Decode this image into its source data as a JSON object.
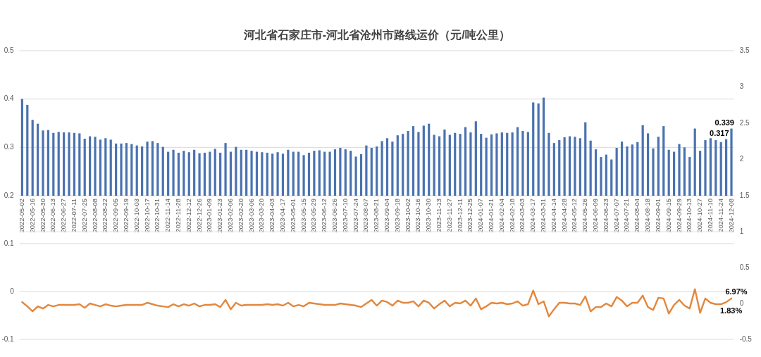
{
  "chart_data": [
    {
      "type": "bar",
      "title": "河北省石家庄市-河北省沧州市路线运价（元/吨公里）",
      "categories": [
        "2022-05-02",
        null,
        "2022-05-16",
        null,
        "2022-05-30",
        null,
        "2022-06-13",
        null,
        "2022-06-27",
        null,
        "2022-07-11",
        null,
        "2022-07-25",
        null,
        "2022-08-08",
        null,
        "2022-08-22",
        null,
        "2022-09-05",
        null,
        "2022-09-19",
        null,
        "2022-10-03",
        null,
        "2022-10-17",
        null,
        "2022-10-31",
        null,
        "2022-11-14",
        null,
        "2022-11-28",
        null,
        "2022-12-12",
        null,
        "2022-12-26",
        null,
        "2023-01-09",
        null,
        "2023-01-23",
        null,
        "2023-02-06",
        null,
        "2023-02-20",
        null,
        "2023-03-06",
        null,
        "2023-03-20",
        null,
        "2023-04-03",
        null,
        "2023-04-17",
        null,
        "2023-05-01",
        null,
        "2023-05-15",
        null,
        "2023-05-29",
        null,
        "2023-06-12",
        null,
        "2023-06-26",
        null,
        "2023-07-10",
        null,
        "2023-07-24",
        null,
        "2023-08-07",
        null,
        "2023-08-21",
        null,
        "2023-09-04",
        null,
        "2023-09-18",
        null,
        "2023-10-02",
        null,
        "2023-10-16",
        null,
        "2023-10-30",
        null,
        "2023-11-13",
        null,
        "2023-11-27",
        null,
        "2023-12-11",
        null,
        "2023-12-25",
        null,
        "2024-01-07",
        null,
        "2024-01-21",
        null,
        "2024-02-04",
        null,
        "2024-02-18",
        null,
        "2024-03-03",
        null,
        "2024-03-17",
        null,
        "2024-03-31",
        null,
        "2024-04-14",
        null,
        "2024-04-28",
        null,
        "2024-05-12",
        null,
        "2024-05-26",
        null,
        "2024-06-09",
        null,
        "2024-06-23",
        null,
        "2024-07-07",
        null,
        "2024-07-21",
        null,
        "2024-08-04",
        null,
        "2024-08-18",
        null,
        "2024-09-01",
        null,
        "2024-09-15",
        null,
        "2024-09-29",
        null,
        "2024-10-13",
        null,
        "2024-10-27",
        null,
        "2024-11-10",
        null,
        "2024-11-24",
        null,
        "2024-12-08"
      ],
      "series": [
        {
          "color": "#4a72b0",
          "values": [
            0.4,
            0.388,
            0.357,
            0.349,
            0.335,
            0.336,
            0.33,
            0.332,
            0.331,
            0.331,
            0.33,
            0.329,
            0.318,
            0.323,
            0.322,
            0.316,
            0.319,
            0.316,
            0.308,
            0.308,
            0.309,
            0.307,
            0.304,
            0.302,
            0.312,
            0.313,
            0.309,
            0.301,
            0.291,
            0.295,
            0.289,
            0.293,
            0.29,
            0.295,
            0.288,
            0.289,
            0.291,
            0.297,
            0.289,
            0.309,
            0.291,
            0.301,
            0.295,
            0.295,
            0.293,
            0.291,
            0.29,
            0.289,
            0.287,
            0.29,
            0.287,
            0.295,
            0.291,
            0.291,
            0.284,
            0.289,
            0.293,
            0.294,
            0.291,
            0.291,
            0.296,
            0.299,
            0.296,
            0.293,
            0.281,
            0.286,
            0.304,
            0.299,
            0.302,
            0.313,
            0.319,
            0.312,
            0.325,
            0.328,
            0.334,
            0.344,
            0.332,
            0.345,
            0.349,
            0.326,
            0.323,
            0.337,
            0.326,
            0.33,
            0.328,
            0.342,
            0.331,
            0.354,
            0.328,
            0.32,
            0.327,
            0.329,
            0.331,
            0.33,
            0.331,
            0.342,
            0.334,
            0.332,
            0.393,
            0.391,
            0.403,
            0.33,
            0.309,
            0.315,
            0.321,
            0.323,
            0.322,
            0.319,
            0.352,
            0.314,
            0.296,
            0.28,
            0.285,
            0.275,
            0.299,
            0.312,
            0.302,
            0.306,
            0.311,
            0.346,
            0.329,
            0.298,
            0.322,
            0.344,
            0.295,
            0.291,
            0.307,
            0.3,
            0.28,
            0.339,
            0.293,
            0.315,
            0.319,
            0.315,
            0.311,
            0.317,
            0.339
          ],
          "value_labels": [
            null,
            null,
            null,
            null,
            null,
            null,
            null,
            null,
            null,
            null,
            null,
            null,
            null,
            null,
            null,
            null,
            null,
            null,
            null,
            null,
            null,
            null,
            null,
            null,
            null,
            null,
            null,
            null,
            null,
            null,
            null,
            null,
            null,
            null,
            null,
            null,
            null,
            null,
            null,
            null,
            null,
            null,
            null,
            null,
            null,
            null,
            null,
            null,
            null,
            null,
            null,
            null,
            null,
            null,
            null,
            null,
            null,
            null,
            null,
            null,
            null,
            null,
            null,
            null,
            null,
            null,
            null,
            null,
            null,
            null,
            null,
            null,
            null,
            null,
            null,
            null,
            null,
            null,
            null,
            null,
            null,
            null,
            null,
            null,
            null,
            null,
            null,
            null,
            null,
            null,
            null,
            null,
            null,
            null,
            null,
            null,
            null,
            null,
            null,
            null,
            null,
            null,
            null,
            null,
            null,
            null,
            null,
            null,
            null,
            null,
            null,
            null,
            null,
            null,
            null,
            null,
            null,
            null,
            null,
            null,
            null,
            null,
            null,
            null,
            null,
            null,
            null,
            null,
            null,
            null,
            null,
            null,
            null,
            null,
            null,
            "0.317",
            "0.339"
          ]
        }
      ],
      "ylim": [
        0.2,
        0.5
      ],
      "yticks": [
        0.2,
        0.3,
        0.4,
        0.5
      ],
      "y2lim": [
        1.5,
        3.5
      ],
      "y2ticks": [
        1.5,
        2,
        2.5,
        3,
        3.5
      ],
      "grid": "y"
    },
    {
      "type": "line",
      "categories": [
        null,
        null,
        null,
        null,
        null,
        null,
        null,
        null,
        null,
        null,
        null,
        null,
        null,
        null,
        null,
        null,
        null,
        null,
        null,
        null,
        null,
        null,
        null,
        null,
        null,
        null,
        null,
        null,
        null,
        null,
        null,
        null,
        null,
        null,
        null,
        null,
        null,
        null,
        null,
        null,
        null,
        null,
        null,
        null,
        null,
        null,
        null,
        null,
        null,
        null,
        null,
        null,
        null,
        null,
        null,
        null,
        null,
        null,
        null,
        null,
        null,
        null,
        null,
        null,
        null,
        null,
        null,
        null,
        null,
        null,
        null,
        null,
        null,
        null,
        null,
        null,
        null,
        null,
        null,
        null,
        null,
        null,
        null,
        null,
        null,
        null,
        null,
        null,
        null,
        null,
        null,
        null,
        null,
        null,
        null,
        null,
        null,
        null,
        null,
        null,
        null,
        null,
        null,
        null,
        null,
        null,
        null,
        null,
        null,
        null,
        null,
        null,
        null,
        null,
        null,
        null,
        null,
        null,
        null,
        null,
        null,
        null,
        null,
        null,
        null,
        null,
        null,
        null,
        null,
        null,
        null,
        null,
        null,
        null,
        null,
        null,
        null
      ],
      "series": [
        {
          "color": "#e3873d",
          "axis": "y2",
          "values": [
            0.02,
            -0.04,
            -0.11,
            -0.04,
            -0.07,
            -0.02,
            -0.04,
            -0.02,
            -0.02,
            -0.02,
            -0.02,
            -0.01,
            -0.06,
            0,
            -0.02,
            -0.04,
            -0.01,
            -0.03,
            -0.04,
            -0.03,
            -0.02,
            -0.02,
            -0.02,
            -0.02,
            0.01,
            -0.01,
            -0.03,
            -0.04,
            -0.05,
            -0.01,
            -0.04,
            -0.01,
            -0.03,
            0,
            -0.04,
            -0.02,
            -0.02,
            -0.01,
            -0.05,
            0.05,
            -0.08,
            0.01,
            -0.03,
            -0.02,
            -0.02,
            -0.02,
            -0.02,
            -0.01,
            -0.02,
            -0.01,
            -0.03,
            0.01,
            -0.04,
            -0.02,
            -0.04,
            0.01,
            0,
            -0.01,
            -0.02,
            -0.02,
            -0.02,
            0,
            -0.01,
            -0.02,
            -0.03,
            -0.05,
            0,
            0.05,
            -0.03,
            0.04,
            0.02,
            -0.03,
            0.04,
            0.01,
            0.01,
            0.03,
            -0.04,
            0.04,
            0.01,
            -0.07,
            -0.01,
            0.04,
            -0.04,
            0.01,
            0,
            0.04,
            -0.03,
            0.07,
            -0.08,
            -0.04,
            0.01,
            0,
            0.01,
            -0.01,
            0,
            0.03,
            -0.03,
            -0.01,
            0.18,
            -0.01,
            0.03,
            -0.18,
            -0.08,
            0.01,
            0.01,
            0,
            0,
            -0.02,
            0.1,
            -0.11,
            -0.05,
            -0.05,
            0,
            -0.04,
            0.09,
            0.04,
            -0.04,
            0.01,
            0.01,
            0.11,
            -0.05,
            -0.09,
            0.08,
            0.07,
            -0.14,
            -0.02,
            0.05,
            -0.03,
            -0.07,
            0.2,
            -0.13,
            0.07,
            0.01,
            -0.01,
            -0.01,
            0.0183,
            0.0697
          ],
          "value_labels": [
            null,
            null,
            null,
            null,
            null,
            null,
            null,
            null,
            null,
            null,
            null,
            null,
            null,
            null,
            null,
            null,
            null,
            null,
            null,
            null,
            null,
            null,
            null,
            null,
            null,
            null,
            null,
            null,
            null,
            null,
            null,
            null,
            null,
            null,
            null,
            null,
            null,
            null,
            null,
            null,
            null,
            null,
            null,
            null,
            null,
            null,
            null,
            null,
            null,
            null,
            null,
            null,
            null,
            null,
            null,
            null,
            null,
            null,
            null,
            null,
            null,
            null,
            null,
            null,
            null,
            null,
            null,
            null,
            null,
            null,
            null,
            null,
            null,
            null,
            null,
            null,
            null,
            null,
            null,
            null,
            null,
            null,
            null,
            null,
            null,
            null,
            null,
            null,
            null,
            null,
            null,
            null,
            null,
            null,
            null,
            null,
            null,
            null,
            null,
            null,
            null,
            null,
            null,
            null,
            null,
            null,
            null,
            null,
            null,
            null,
            null,
            null,
            null,
            null,
            null,
            null,
            null,
            null,
            null,
            null,
            null,
            null,
            null,
            null,
            null,
            null,
            null,
            null,
            null,
            null,
            null,
            null,
            null,
            null,
            null,
            "1.83%",
            "6.97%"
          ]
        }
      ],
      "ylim": [
        -0.1,
        0.125
      ],
      "yticks": [
        -0.1,
        0,
        0.1
      ],
      "y2lim": [
        -0.5,
        1
      ],
      "y2ticks": [
        -0.5,
        0,
        0.5,
        1
      ],
      "grid": "y",
      "tick_labels": "y"
    }
  ]
}
